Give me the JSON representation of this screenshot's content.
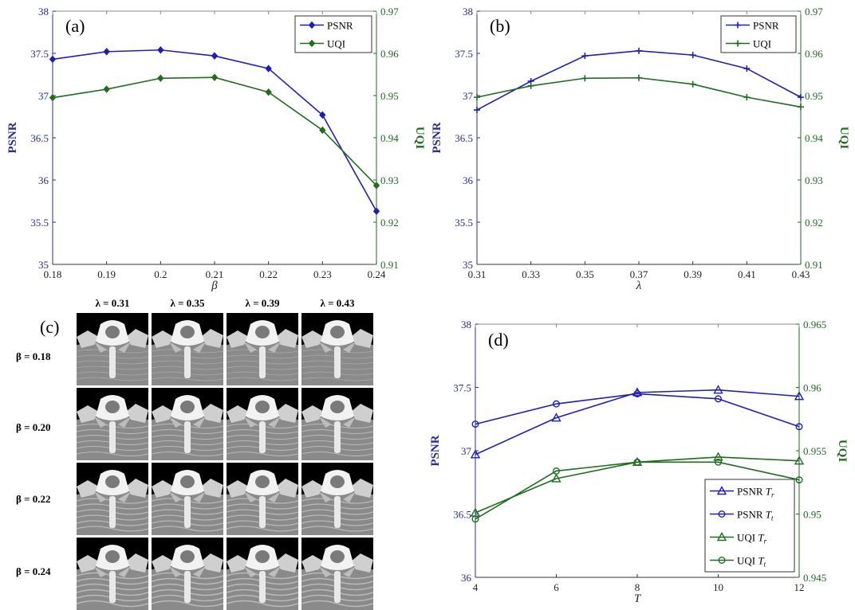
{
  "chart_data": [
    {
      "panel": "(a)",
      "type": "line",
      "xlabel": "β",
      "ylabel_left": "PSNR",
      "ylabel_right": "UQI",
      "x": [
        0.18,
        0.19,
        0.2,
        0.21,
        0.22,
        0.23,
        0.24
      ],
      "x_ticks": [
        "0.18",
        "0.19",
        "0.2",
        "0.21",
        "0.22",
        "0.23",
        "0.24"
      ],
      "xlim": [
        0.18,
        0.24
      ],
      "ylim_left": [
        35,
        38
      ],
      "y_ticks_left": [
        "35",
        "35.5",
        "36",
        "36.5",
        "37",
        "37.5",
        "38"
      ],
      "ylim_right": [
        0.91,
        0.97
      ],
      "y_ticks_right": [
        "0.91",
        "0.92",
        "0.93",
        "0.94",
        "0.95",
        "0.96",
        "0.97"
      ],
      "legend_position": "top-right",
      "series": [
        {
          "name": "PSNR",
          "axis": "left",
          "color": "#1f1fb4",
          "marker": "diamond",
          "values": [
            37.43,
            37.52,
            37.54,
            37.47,
            37.32,
            36.77,
            35.63
          ]
        },
        {
          "name": "UQI",
          "axis": "right",
          "color": "#1e6e1e",
          "marker": "diamond",
          "values": [
            0.9495,
            0.9515,
            0.9541,
            0.9543,
            0.9508,
            0.9418,
            0.9287
          ]
        }
      ]
    },
    {
      "panel": "(b)",
      "type": "line",
      "xlabel": "λ",
      "ylabel_left": "PSNR",
      "ylabel_right": "UQI",
      "x": [
        0.31,
        0.33,
        0.35,
        0.37,
        0.39,
        0.41,
        0.43
      ],
      "x_ticks": [
        "0.31",
        "0.33",
        "0.35",
        "0.37",
        "0.39",
        "0.41",
        "0.43"
      ],
      "xlim": [
        0.31,
        0.43
      ],
      "ylim_left": [
        35,
        38
      ],
      "y_ticks_left": [
        "35",
        "35.5",
        "36",
        "36.5",
        "37",
        "37.5",
        "38"
      ],
      "ylim_right": [
        0.91,
        0.97
      ],
      "y_ticks_right": [
        "0.91",
        "0.92",
        "0.93",
        "0.94",
        "0.95",
        "0.96",
        "0.97"
      ],
      "legend_position": "top-right",
      "series": [
        {
          "name": "PSNR",
          "axis": "left",
          "color": "#1f1fb4",
          "marker": "plus",
          "values": [
            36.83,
            37.17,
            37.47,
            37.53,
            37.48,
            37.32,
            36.98
          ]
        },
        {
          "name": "UQI",
          "axis": "right",
          "color": "#1e6e1e",
          "marker": "plus",
          "values": [
            0.9496,
            0.9523,
            0.9541,
            0.9542,
            0.9527,
            0.9496,
            0.9473
          ]
        }
      ]
    },
    {
      "panel": "(d)",
      "type": "line",
      "xlabel": "T",
      "ylabel_left": "PSNR",
      "ylabel_right": "UQI",
      "x": [
        4,
        6,
        8,
        10,
        12
      ],
      "x_ticks": [
        "4",
        "6",
        "8",
        "10",
        "12"
      ],
      "xlim": [
        4,
        12
      ],
      "ylim_left": [
        36,
        38
      ],
      "y_ticks_left": [
        "36",
        "36.5",
        "37",
        "37.5",
        "38"
      ],
      "ylim_right": [
        0.945,
        0.965
      ],
      "y_ticks_right": [
        "0.945",
        "0.95",
        "0.955",
        "0.96",
        "0.965"
      ],
      "legend_position": "bottom-right",
      "series": [
        {
          "name": "PSNR",
          "subscript": "r",
          "axis": "left",
          "color": "#1f1fb4",
          "marker": "triangle",
          "values": [
            36.97,
            37.26,
            37.46,
            37.48,
            37.43
          ]
        },
        {
          "name": "PSNR",
          "subscript": "t",
          "axis": "left",
          "color": "#1f1fb4",
          "marker": "circle",
          "values": [
            37.21,
            37.37,
            37.45,
            37.41,
            37.19
          ]
        },
        {
          "name": "UQI",
          "subscript": "r",
          "axis": "right",
          "color": "#1e6e1e",
          "marker": "triangle",
          "values": [
            0.9501,
            0.9528,
            0.9541,
            0.9545,
            0.9542
          ]
        },
        {
          "name": "UQI",
          "subscript": "t",
          "axis": "right",
          "color": "#1e6e1e",
          "marker": "circle",
          "values": [
            0.9496,
            0.9534,
            0.9541,
            0.9541,
            0.9527
          ]
        }
      ]
    }
  ],
  "panel_c": {
    "label": "(c)",
    "col_labels": [
      "λ = 0.31",
      "λ = 0.35",
      "λ = 0.39",
      "λ = 0.43"
    ],
    "row_labels": [
      "β = 0.18",
      "β = 0.20",
      "β = 0.22",
      "β = 0.24"
    ],
    "description_tiles": 16
  }
}
